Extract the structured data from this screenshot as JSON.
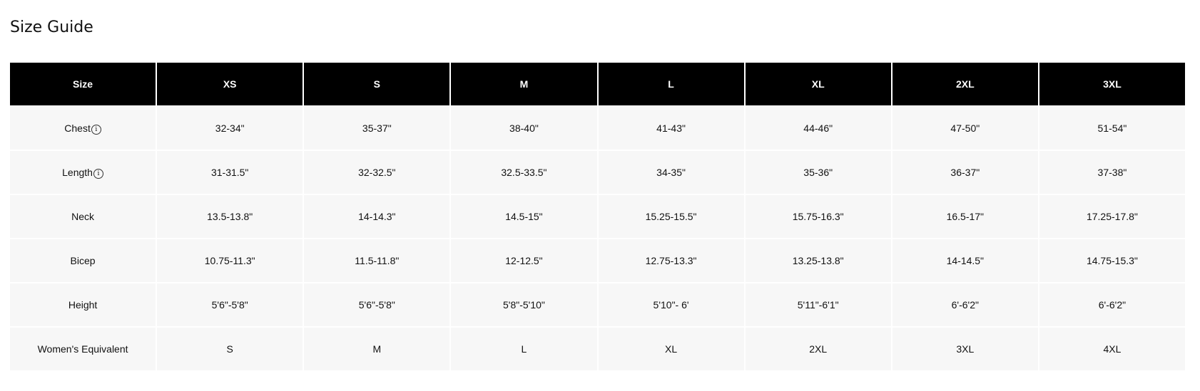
{
  "title": "Size Guide",
  "table": {
    "headers": [
      "Size",
      "XS",
      "S",
      "M",
      "L",
      "XL",
      "2XL",
      "3XL"
    ],
    "rows": [
      {
        "label": "Chest",
        "info": true,
        "values": [
          "32-34\"",
          "35-37\"",
          "38-40\"",
          "41-43\"",
          "44-46\"",
          "47-50\"",
          "51-54\""
        ]
      },
      {
        "label": "Length",
        "info": true,
        "values": [
          "31-31.5\"",
          "32-32.5\"",
          "32.5-33.5\"",
          "34-35\"",
          "35-36\"",
          "36-37\"",
          "37-38\""
        ]
      },
      {
        "label": "Neck",
        "info": false,
        "values": [
          "13.5-13.8\"",
          "14-14.3\"",
          "14.5-15\"",
          "15.25-15.5\"",
          "15.75-16.3\"",
          "16.5-17\"",
          "17.25-17.8\""
        ]
      },
      {
        "label": "Bicep",
        "info": false,
        "values": [
          "10.75-11.3\"",
          "11.5-11.8\"",
          "12-12.5\"",
          "12.75-13.3\"",
          "13.25-13.8\"",
          "14-14.5\"",
          "14.75-15.3\""
        ]
      },
      {
        "label": "Height",
        "info": false,
        "values": [
          "5'6\"-5'8\"",
          "5'6\"-5'8\"",
          "5'8\"-5'10\"",
          "5'10\"- 6'",
          "5'11\"-6'1\"",
          "6'-6'2\"",
          "6'-6'2\""
        ]
      },
      {
        "label": "Women's Equivalent",
        "info": false,
        "values": [
          "S",
          "M",
          "L",
          "XL",
          "2XL",
          "3XL",
          "4XL"
        ]
      }
    ],
    "info_icon": "info-circle-icon",
    "header_bg": "#000000",
    "row_bg": "#f7f7f7"
  }
}
